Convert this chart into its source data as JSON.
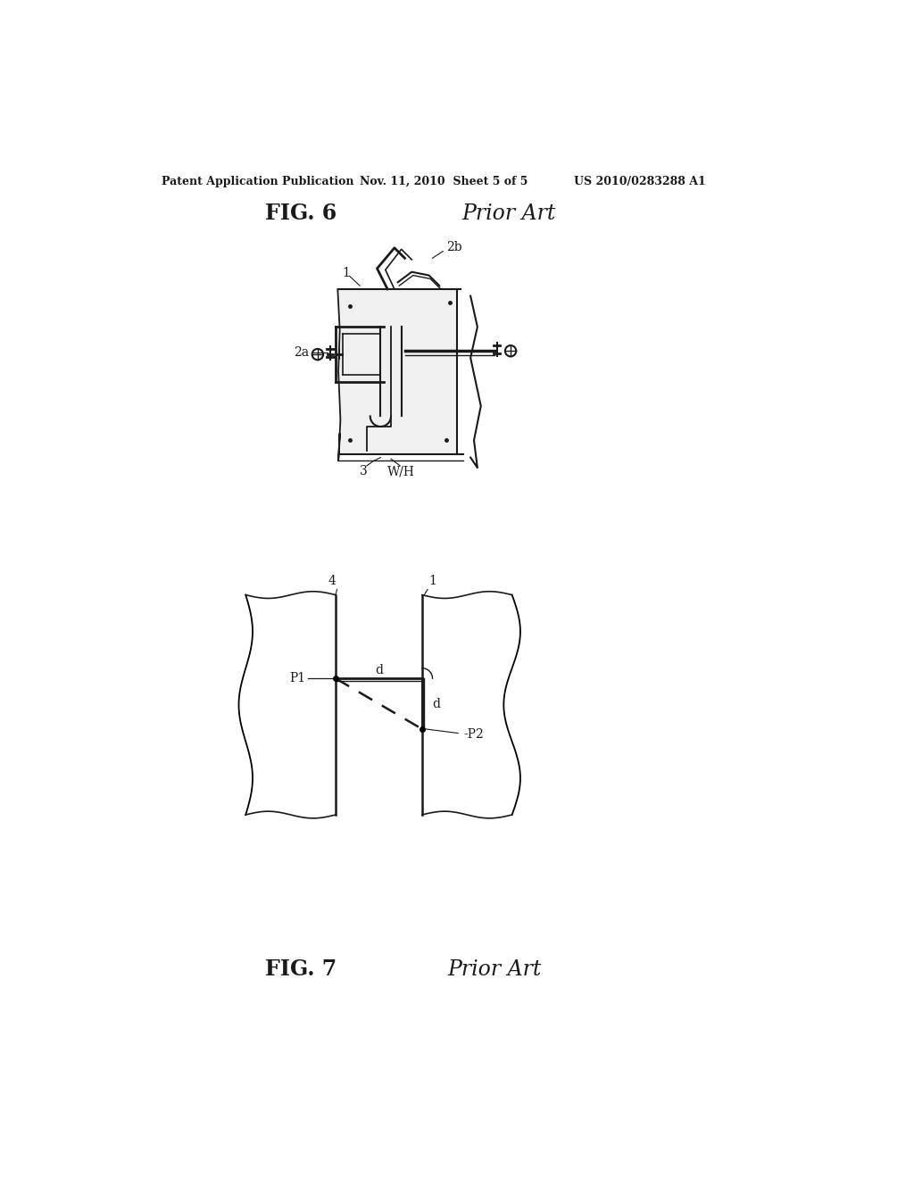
{
  "header_left": "Patent Application Publication",
  "header_mid": "Nov. 11, 2010  Sheet 5 of 5",
  "header_right": "US 2010/0283288 A1",
  "fig6_label": "FIG. 6",
  "fig6_prior_art": "Prior Art",
  "fig7_label": "FIG. 7",
  "fig7_prior_art": "Prior Art",
  "bg_color": "#ffffff"
}
